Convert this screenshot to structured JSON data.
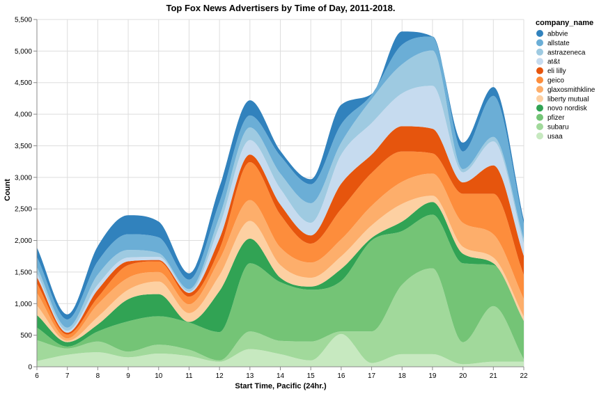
{
  "chart_data": {
    "type": "area",
    "title": "Top Fox News Advertisers by Time of Day, 2011-2018.",
    "xlabel": "Start Time, Pacific (24hr.)",
    "ylabel": "Count",
    "ylim": [
      0,
      5500
    ],
    "yticks": [
      "0",
      "500",
      "1,000",
      "1,500",
      "2,000",
      "2,500",
      "3,000",
      "3,500",
      "4,000",
      "4,500",
      "5,000",
      "5,500"
    ],
    "ytick_values": [
      0,
      500,
      1000,
      1500,
      2000,
      2500,
      3000,
      3500,
      4000,
      4500,
      5000,
      5500
    ],
    "x": [
      6,
      7,
      8,
      9,
      10,
      11,
      12,
      13,
      14,
      15,
      16,
      17,
      18,
      19,
      20,
      21,
      22
    ],
    "xticks": [
      "6",
      "7",
      "8",
      "9",
      "10",
      "11",
      "12",
      "13",
      "14",
      "15",
      "16",
      "17",
      "18",
      "19",
      "20",
      "21",
      "22"
    ],
    "grid": true,
    "stacked": true,
    "legend_title": "company_name",
    "legend_position": "right",
    "series": [
      {
        "name": "usaa",
        "color": "#c7e9c0",
        "values": [
          90,
          190,
          230,
          150,
          210,
          170,
          80,
          280,
          200,
          100,
          520,
          60,
          200,
          200,
          40,
          80,
          80
        ]
      },
      {
        "name": "subaru",
        "color": "#a1d99b",
        "values": [
          330,
          100,
          170,
          90,
          140,
          100,
          20,
          280,
          210,
          300,
          40,
          500,
          1100,
          1360,
          350,
          880,
          40
        ]
      },
      {
        "name": "pfizer",
        "color": "#74c476",
        "values": [
          200,
          30,
          160,
          480,
          450,
          430,
          450,
          1080,
          930,
          820,
          800,
          1440,
          850,
          850,
          1250,
          650,
          600
        ]
      },
      {
        "name": "novo nordisk",
        "color": "#31a354",
        "values": [
          200,
          70,
          110,
          350,
          350,
          10,
          650,
          390,
          70,
          50,
          190,
          40,
          150,
          200,
          150,
          30,
          5
        ]
      },
      {
        "name": "liberty mutual",
        "color": "#fdd0a2",
        "values": [
          150,
          20,
          120,
          150,
          200,
          140,
          250,
          280,
          200,
          140,
          200,
          200,
          280,
          100,
          110,
          90,
          70
        ]
      },
      {
        "name": "glaxosmithkline",
        "color": "#fdae6b",
        "values": [
          200,
          40,
          200,
          190,
          150,
          140,
          250,
          330,
          280,
          240,
          270,
          310,
          350,
          350,
          380,
          370,
          280
        ]
      },
      {
        "name": "geico",
        "color": "#fd8d3c",
        "values": [
          150,
          60,
          110,
          200,
          170,
          120,
          160,
          600,
          520,
          300,
          480,
          520,
          480,
          320,
          460,
          640,
          380
        ]
      },
      {
        "name": "eli lilly",
        "color": "#e6550d",
        "values": [
          100,
          30,
          120,
          60,
          20,
          60,
          170,
          120,
          160,
          130,
          400,
          290,
          400,
          390,
          180,
          450,
          300
        ]
      },
      {
        "name": "at&t",
        "color": "#c6dbef",
        "values": [
          60,
          30,
          80,
          60,
          50,
          20,
          200,
          230,
          250,
          200,
          460,
          500,
          520,
          680,
          160,
          380,
          200
        ]
      },
      {
        "name": "astrazeneca",
        "color": "#9ecae1",
        "values": [
          100,
          50,
          160,
          120,
          60,
          40,
          150,
          200,
          240,
          310,
          190,
          380,
          460,
          560,
          50,
          70,
          70
        ]
      },
      {
        "name": "allstate",
        "color": "#6baed6",
        "values": [
          160,
          130,
          210,
          250,
          250,
          150,
          230,
          190,
          280,
          300,
          290,
          70,
          310,
          220,
          280,
          650,
          240
        ]
      },
      {
        "name": "abbvie",
        "color": "#3182bd",
        "values": [
          150,
          80,
          240,
          300,
          250,
          100,
          240,
          240,
          80,
          80,
          310,
          10,
          210,
          0,
          140,
          140,
          60
        ]
      }
    ]
  }
}
